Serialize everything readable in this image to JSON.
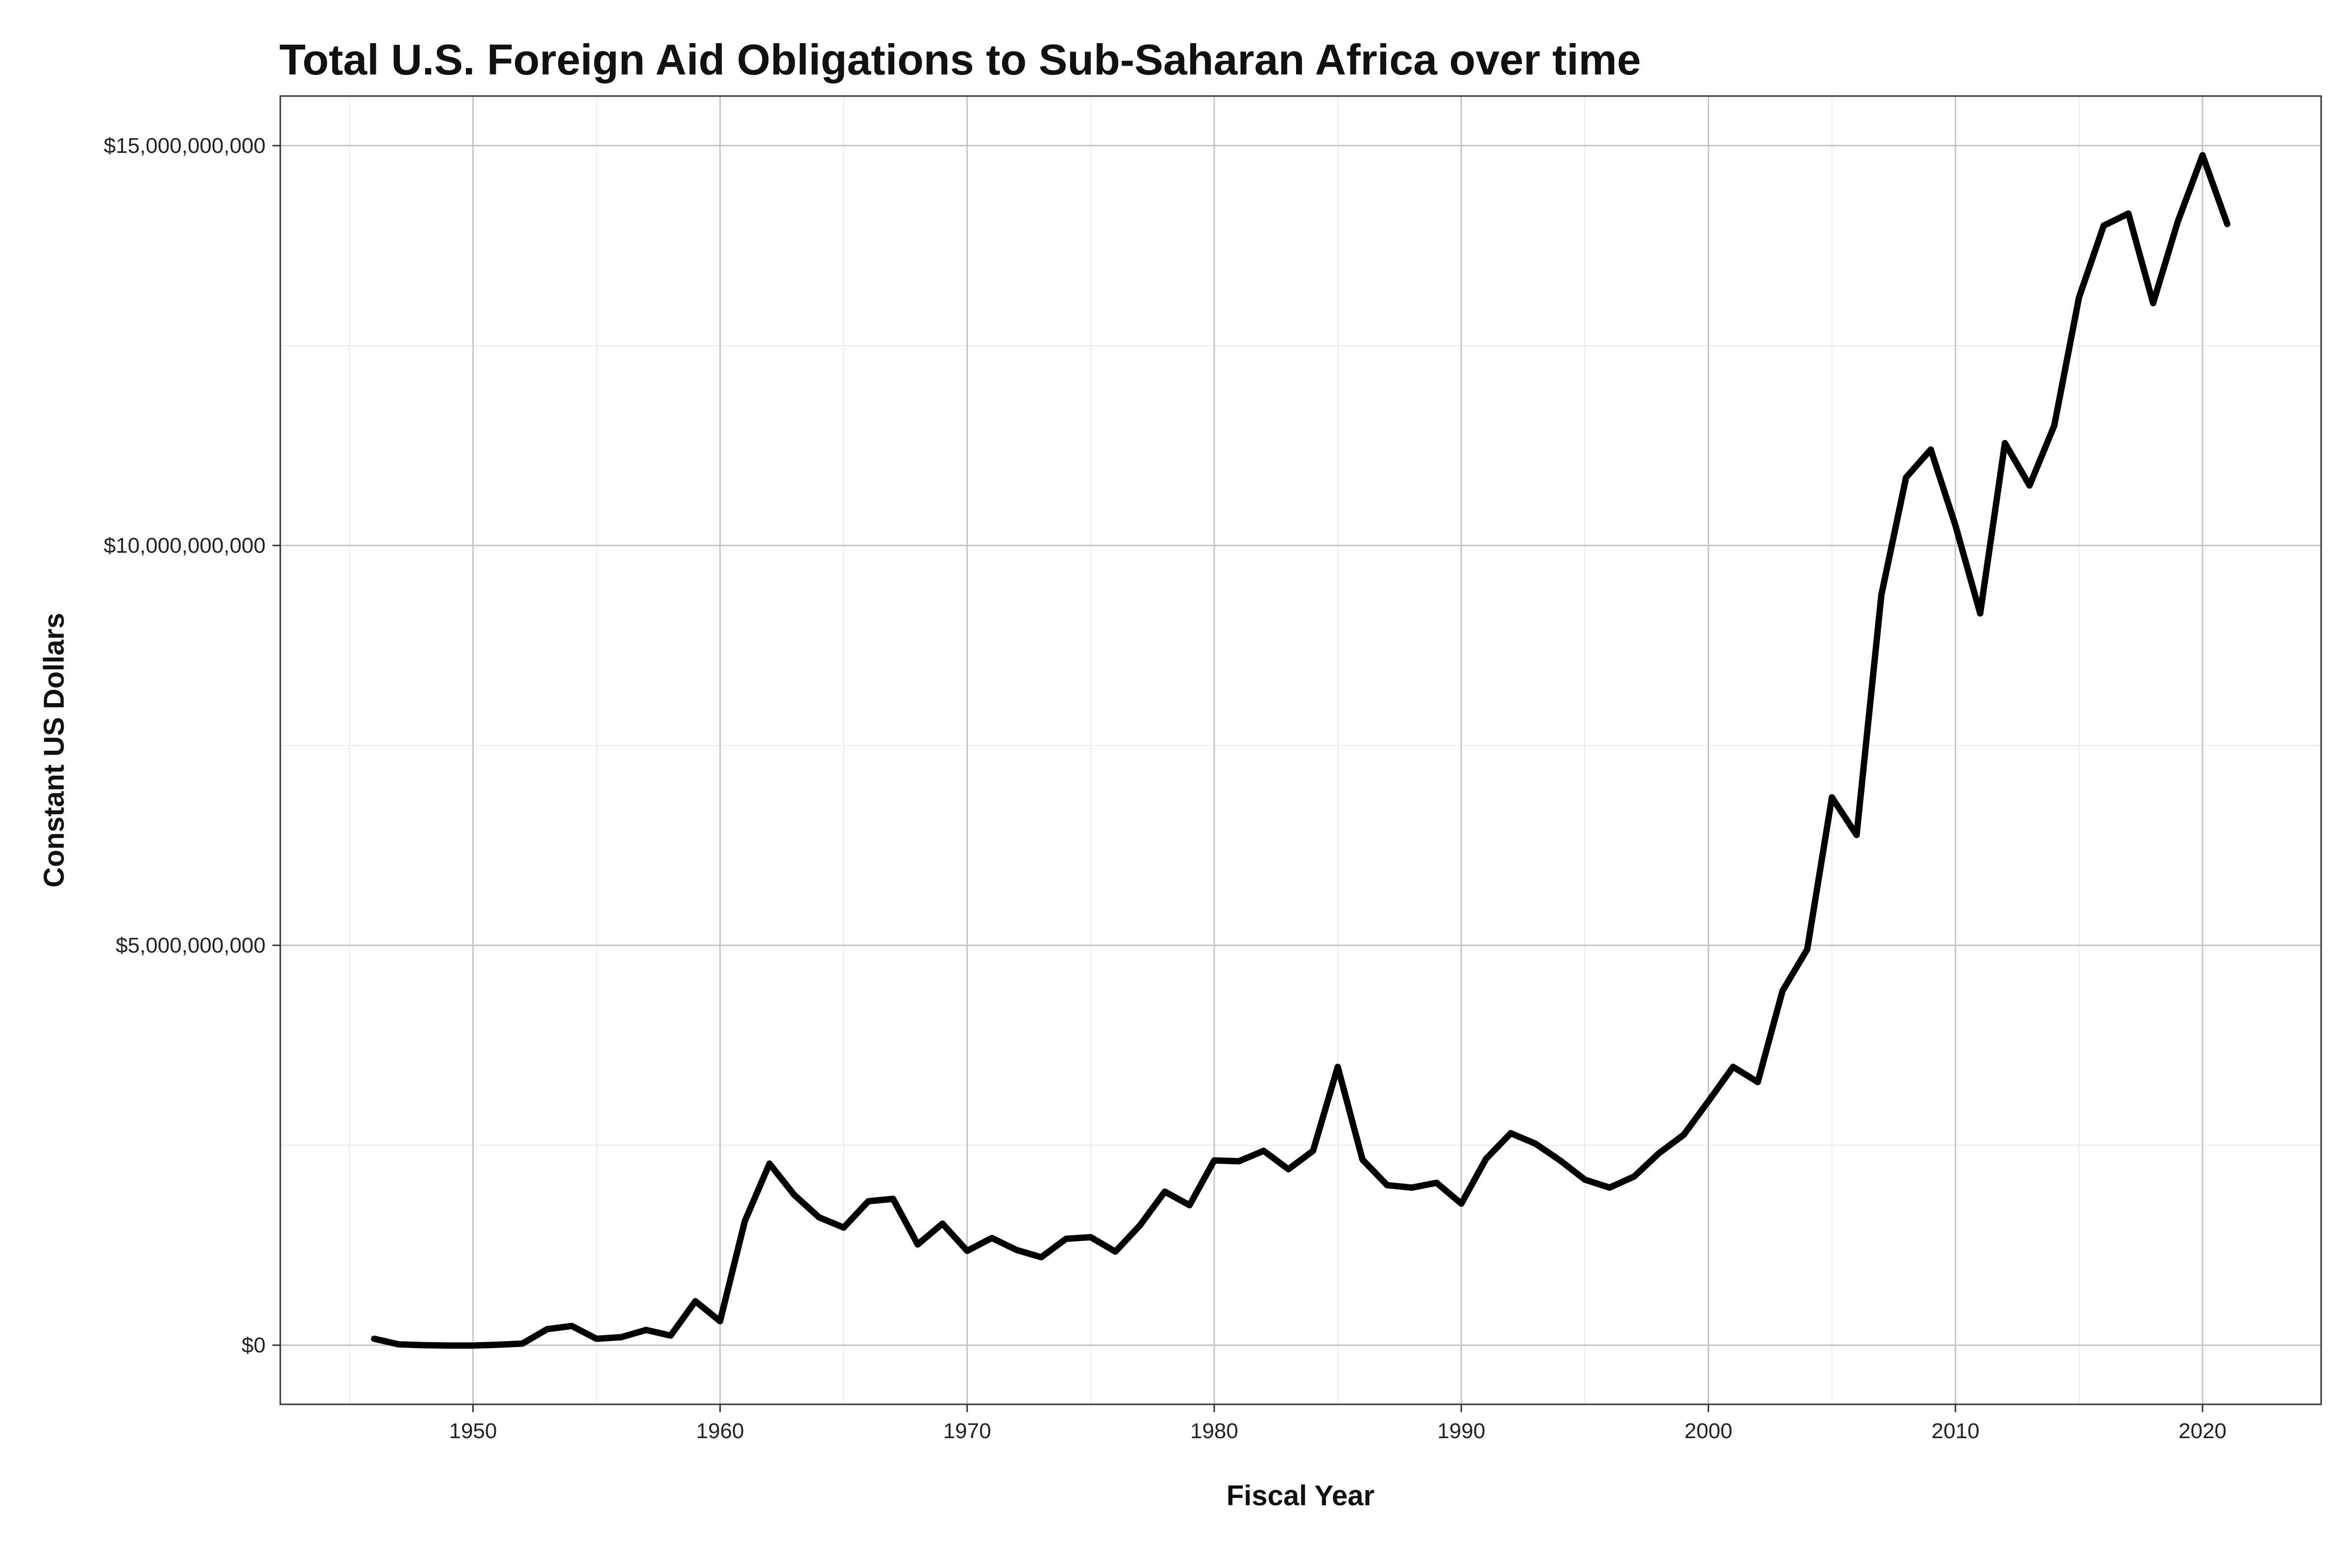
{
  "chart_data": {
    "type": "line",
    "title": "Total U.S. Foreign Aid Obligations to Sub-Saharan Africa over time",
    "xlabel": "Fiscal Year",
    "ylabel": "Constant US Dollars",
    "xlim": [
      1942.2,
      2024.8
    ],
    "ylim": [
      -740000000,
      15620000000
    ],
    "x_ticks": [
      1950,
      1960,
      1970,
      1980,
      1990,
      2000,
      2010,
      2020
    ],
    "x_tick_labels": [
      "1950",
      "1960",
      "1970",
      "1980",
      "1990",
      "2000",
      "2010",
      "2020"
    ],
    "y_ticks": [
      0,
      5000000000,
      10000000000,
      15000000000
    ],
    "y_tick_labels": [
      "$0",
      "$5,000,000,000",
      "$10,000,000,000",
      "$15,000,000,000"
    ],
    "grid": true,
    "legend": "none",
    "line_color": "#000000",
    "series": [
      {
        "x": [
          1946,
          1947,
          1948,
          1949,
          1950,
          1951,
          1952,
          1953,
          1954,
          1955,
          1956,
          1957,
          1958,
          1959,
          1960,
          1961,
          1962,
          1963,
          1964,
          1965,
          1966,
          1967,
          1968,
          1969,
          1970,
          1971,
          1972,
          1973,
          1974,
          1975,
          1976,
          1977,
          1978,
          1979,
          1980,
          1981,
          1982,
          1983,
          1984,
          1985,
          1986,
          1987,
          1988,
          1989,
          1990,
          1991,
          1992,
          1993,
          1994,
          1995,
          1996,
          1997,
          1998,
          1999,
          2000,
          2001,
          2002,
          2003,
          2004,
          2005,
          2006,
          2007,
          2008,
          2009,
          2010,
          2011,
          2012,
          2013,
          2014,
          2015,
          2016,
          2017,
          2018,
          2019,
          2020,
          2021
        ],
        "values": [
          80000000,
          10000000,
          0,
          -5000000,
          -5000000,
          5000000,
          20000000,
          200000000,
          240000000,
          80000000,
          100000000,
          190000000,
          120000000,
          550000000,
          300000000,
          1550000000,
          2270000000,
          1880000000,
          1600000000,
          1470000000,
          1800000000,
          1830000000,
          1260000000,
          1520000000,
          1180000000,
          1340000000,
          1190000000,
          1100000000,
          1330000000,
          1350000000,
          1170000000,
          1500000000,
          1920000000,
          1750000000,
          2310000000,
          2300000000,
          2430000000,
          2200000000,
          2430000000,
          3480000000,
          2320000000,
          2000000000,
          1970000000,
          2030000000,
          1770000000,
          2330000000,
          2650000000,
          2520000000,
          2310000000,
          2070000000,
          1970000000,
          2110000000,
          2400000000,
          2630000000,
          3050000000,
          3480000000,
          3290000000,
          4430000000,
          4950000000,
          6850000000,
          6380000000,
          9380000000,
          10850000000,
          11200000000,
          10250000000,
          9150000000,
          11280000000,
          10750000000,
          11500000000,
          13100000000,
          14000000000,
          14150000000,
          13030000000,
          14050000000,
          14880000000,
          14020000000
        ]
      }
    ]
  }
}
